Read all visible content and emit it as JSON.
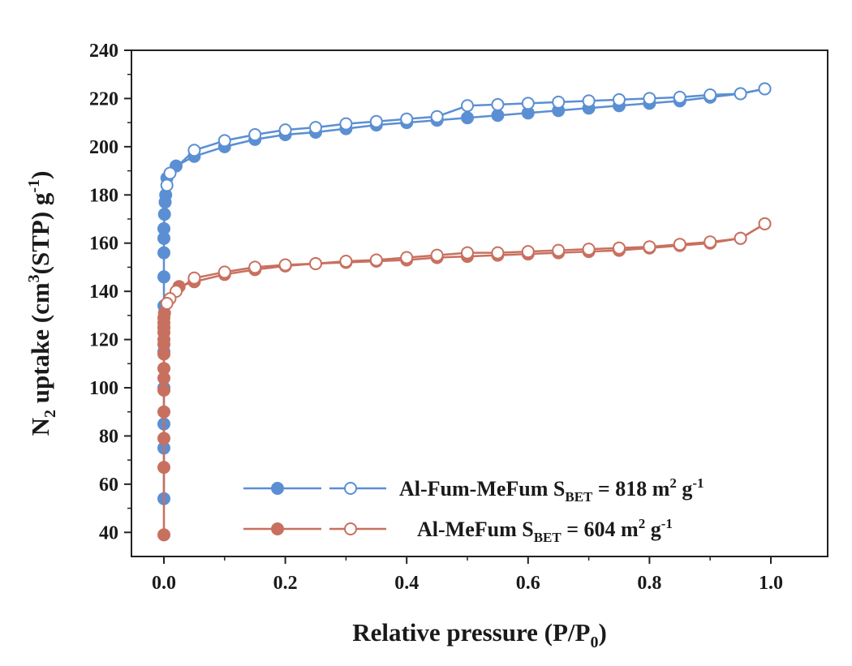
{
  "chart_data": {
    "type": "line",
    "xlabel": "Relative pressure (P/P0)",
    "xlabel_parts": [
      "Relative pressure (P/P",
      "0",
      ")"
    ],
    "ylabel": "N2 uptake (cm3(STP) g-1)",
    "ylabel_parts": [
      "N",
      "2",
      " uptake (cm",
      "3",
      "(STP) g",
      "-1",
      ")"
    ],
    "xlim": [
      -0.05,
      1.05
    ],
    "ylim": [
      30,
      240
    ],
    "xticks": [
      "0.0",
      "0.2",
      "0.4",
      "0.6",
      "0.8",
      "1.0"
    ],
    "yticks": [
      "40",
      "60",
      "80",
      "100",
      "120",
      "140",
      "160",
      "180",
      "200",
      "220",
      "240"
    ],
    "grid": false,
    "legend_position": "bottom-right",
    "colors": {
      "blue": "#5b8fd3",
      "red": "#c8705f"
    },
    "series": [
      {
        "name": "Al-Fum-MeFum SBET = 818 m2 g-1",
        "legend_parts": [
          "Al-Fum-MeFum S",
          "BET",
          " = 818 m",
          "2",
          " g",
          "-1"
        ],
        "color": "blue",
        "adsorption": {
          "x": [
            0.0,
            0.0,
            0.0,
            0.0,
            0.0,
            0.0,
            0.0,
            0.0,
            0.0,
            0.0,
            0.0,
            0.001,
            0.002,
            0.003,
            0.005,
            0.02,
            0.05,
            0.1,
            0.15,
            0.2,
            0.25,
            0.3,
            0.35,
            0.4,
            0.45,
            0.5,
            0.55,
            0.6,
            0.65,
            0.7,
            0.75,
            0.8,
            0.85,
            0.9,
            0.95,
            0.99
          ],
          "y": [
            54,
            75,
            85,
            100,
            115,
            125,
            134,
            146,
            156,
            162,
            166,
            172,
            177,
            180,
            187,
            192,
            196,
            200,
            203,
            205,
            206,
            207.5,
            209,
            210,
            211,
            212,
            213,
            214,
            215,
            216,
            217,
            218,
            219,
            220.5,
            222,
            224
          ]
        },
        "desorption": {
          "x": [
            0.99,
            0.95,
            0.9,
            0.85,
            0.8,
            0.75,
            0.7,
            0.65,
            0.6,
            0.55,
            0.5,
            0.45,
            0.4,
            0.35,
            0.3,
            0.25,
            0.2,
            0.15,
            0.1,
            0.05,
            0.01,
            0.005
          ],
          "y": [
            224,
            222,
            221.5,
            220.5,
            220,
            219.5,
            219,
            218.5,
            218,
            217.5,
            217,
            212.5,
            211.5,
            210.5,
            209.5,
            208,
            207,
            205,
            202.5,
            198.5,
            189,
            184
          ]
        }
      },
      {
        "name": "Al-MeFum SBET = 604 m2 g-1",
        "legend_parts": [
          "Al-MeFum S",
          "BET",
          " = 604 m",
          "2",
          " g",
          "-1"
        ],
        "color": "red",
        "adsorption": {
          "x": [
            0.0,
            0.0,
            0.0,
            0.0,
            0.0,
            0.0,
            0.0,
            0.0,
            0.0,
            0.0,
            0.0,
            0.0,
            0.0,
            0.0,
            0.001,
            0.025,
            0.05,
            0.1,
            0.15,
            0.2,
            0.25,
            0.3,
            0.35,
            0.4,
            0.45,
            0.5,
            0.55,
            0.6,
            0.65,
            0.7,
            0.75,
            0.8,
            0.85,
            0.9,
            0.95,
            0.99
          ],
          "y": [
            39,
            67,
            79,
            90,
            99,
            104,
            108,
            114,
            118,
            120,
            123,
            125,
            127,
            129,
            131,
            142,
            144,
            147,
            149,
            150.5,
            151.5,
            152,
            152.5,
            153,
            154,
            154.5,
            155,
            155.5,
            156,
            156.5,
            157,
            158,
            159,
            160,
            162,
            168
          ]
        },
        "desorption": {
          "x": [
            0.99,
            0.95,
            0.9,
            0.85,
            0.8,
            0.75,
            0.7,
            0.65,
            0.6,
            0.55,
            0.5,
            0.45,
            0.4,
            0.35,
            0.3,
            0.25,
            0.2,
            0.15,
            0.1,
            0.05,
            0.02,
            0.01,
            0.005
          ],
          "y": [
            168,
            162,
            160.5,
            159.5,
            158.5,
            158,
            157.5,
            157,
            156.5,
            156,
            156,
            155,
            154,
            153,
            152.5,
            151.5,
            151,
            150,
            148,
            145.5,
            140,
            137,
            135
          ]
        }
      }
    ]
  }
}
